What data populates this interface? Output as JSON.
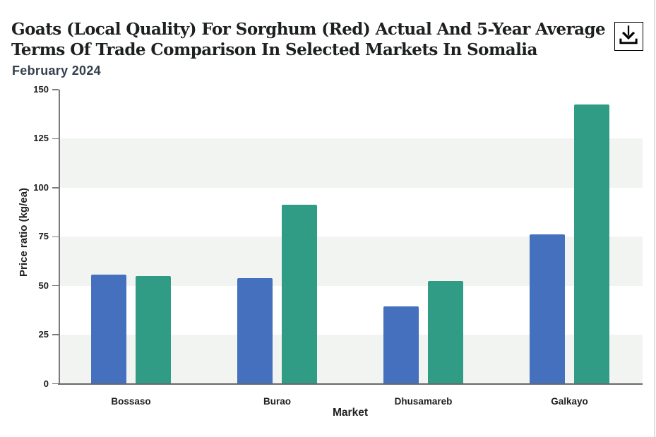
{
  "header": {
    "title": "Goats (Local Quality) For Sorghum (Red) Actual And 5-Year Average Terms Of Trade Comparison In Selected Markets In Somalia",
    "title_lines": [
      "Goats (Local Quality) For Sorghum (Red) Actual And 5-Year Average",
      "Terms Of Trade Comparison In Selected Markets In Somalia"
    ],
    "subtitle": "February 2024",
    "download_icon": "download-icon"
  },
  "chart_data": {
    "type": "bar",
    "title": "Goats (Local Quality) For Sorghum (Red) Actual And 5-Year Average Terms Of Trade Comparison In Selected Markets In Somalia",
    "subtitle": "February 2024",
    "categories": [
      "Bossaso",
      "Burao",
      "Dhusamareb",
      "Galkayo"
    ],
    "series": [
      {
        "name": "Actual",
        "color": "#4470bd",
        "values": [
          55.7,
          54.0,
          39.6,
          76.0
        ]
      },
      {
        "name": "5-Year Average",
        "color": "#319c86",
        "values": [
          55.0,
          91.3,
          52.5,
          142.6
        ]
      }
    ],
    "xlabel": "Market",
    "ylabel": "Price ratio (kg/ea)",
    "ylim": [
      0,
      150
    ],
    "yticks": [
      0,
      25,
      50,
      75,
      100,
      125,
      150
    ],
    "legend_position": "none",
    "grid": "alternating-horizontal-bands",
    "band_color": "#f2f4f2",
    "axis_color": "#7b7b7b",
    "tick_label_color": "#1f1f1f"
  }
}
